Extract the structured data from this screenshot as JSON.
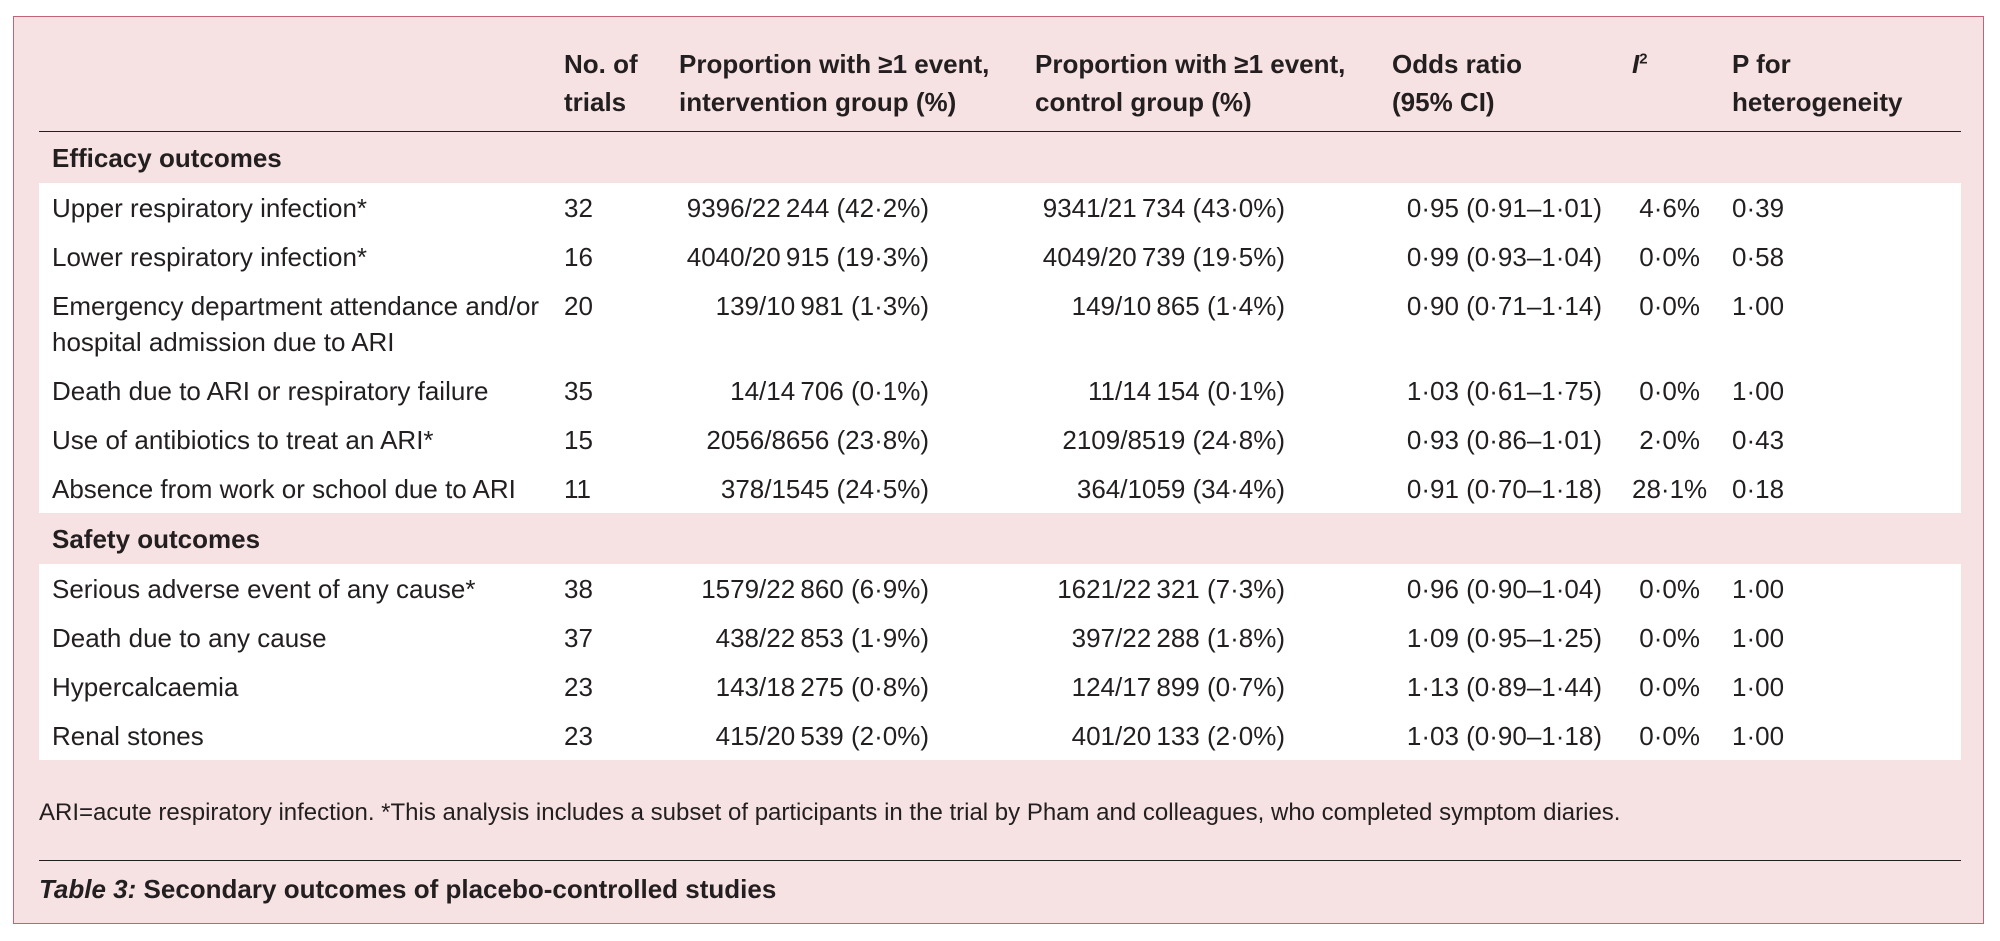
{
  "table": {
    "headers": {
      "outcome": "",
      "trials": "No. of trials",
      "intervention": "Proportion with ≥1 event, intervention group (%)",
      "control": "Proportion with ≥1 event, control group (%)",
      "odds_ratio": "Odds ratio (95% CI)",
      "i2_base": "I",
      "i2_sup": "2",
      "p_het": "P for heterogeneity"
    },
    "sections": [
      {
        "title": "Efficacy outcomes",
        "rows": [
          {
            "outcome": "Upper respiratory infection*",
            "trials": "32",
            "intervention": "9396/22 244 (42·2%)",
            "control": "9341/21 734 (43·0%)",
            "odds_ratio": "0·95 (0·91–1·01)",
            "i2": "4·6%",
            "p_het": "0·39"
          },
          {
            "outcome": "Lower respiratory infection*",
            "trials": "16",
            "intervention": "4040/20 915 (19·3%)",
            "control": "4049/20 739 (19·5%)",
            "odds_ratio": "0·99 (0·93–1·04)",
            "i2": "0·0%",
            "p_het": "0·58"
          },
          {
            "outcome": "Emergency department attendance and/or hospital admission due to ARI",
            "trials": "20",
            "intervention": "139/10 981 (1·3%)",
            "control": "149/10 865 (1·4%)",
            "odds_ratio": "0·90 (0·71–1·14)",
            "i2": "0·0%",
            "p_het": "1·00"
          },
          {
            "outcome": "Death due to ARI or respiratory failure",
            "trials": "35",
            "intervention": "14/14 706 (0·1%)",
            "control": "11/14 154 (0·1%)",
            "odds_ratio": "1·03 (0·61–1·75)",
            "i2": "0·0%",
            "p_het": "1·00"
          },
          {
            "outcome": "Use of antibiotics to treat an ARI*",
            "trials": "15",
            "intervention": "2056/8656 (23·8%)",
            "control": "2109/8519 (24·8%)",
            "odds_ratio": "0·93 (0·86–1·01)",
            "i2": "2·0%",
            "p_het": "0·43"
          },
          {
            "outcome": "Absence from work or school due to ARI",
            "trials": "11",
            "intervention": "378/1545 (24·5%)",
            "control": "364/1059 (34·4%)",
            "odds_ratio": "0·91 (0·70–1·18)",
            "i2": "28·1%",
            "p_het": "0·18"
          }
        ]
      },
      {
        "title": "Safety outcomes",
        "rows": [
          {
            "outcome": "Serious adverse event of any cause*",
            "trials": "38",
            "intervention": "1579/22 860 (6·9%)",
            "control": "1621/22 321 (7·3%)",
            "odds_ratio": "0·96 (0·90–1·04)",
            "i2": "0·0%",
            "p_het": "1·00"
          },
          {
            "outcome": "Death due to any cause",
            "trials": "37",
            "intervention": "438/22 853 (1·9%)",
            "control": "397/22 288 (1·8%)",
            "odds_ratio": "1·09 (0·95–1·25)",
            "i2": "0·0%",
            "p_het": "1·00"
          },
          {
            "outcome": "Hypercalcaemia",
            "trials": "23",
            "intervention": "143/18 275 (0·8%)",
            "control": "124/17 899 (0·7%)",
            "odds_ratio": "1·13 (0·89–1·44)",
            "i2": "0·0%",
            "p_het": "1·00"
          },
          {
            "outcome": "Renal stones",
            "trials": "23",
            "intervention": "415/20 539 (2·0%)",
            "control": "401/20 133 (2·0%)",
            "odds_ratio": "1·03 (0·90–1·18)",
            "i2": "0·0%",
            "p_het": "1·00"
          }
        ]
      }
    ]
  },
  "footnote": "ARI=acute respiratory infection. *This analysis includes a subset of participants in the trial by Pham and colleagues, who completed symptom diaries.",
  "caption": {
    "label": "Table 3:",
    "text": " Secondary outcomes of placebo-controlled studies"
  },
  "colors": {
    "panel_background": "#f6e2e2",
    "panel_border": "#c0647a",
    "row_background": "#ffffff",
    "text": "#231f20"
  }
}
